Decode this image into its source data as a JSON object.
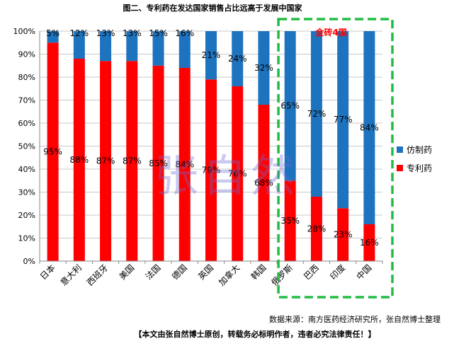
{
  "chart_data": {
    "type": "bar",
    "stacked": true,
    "title": "图二、专利药在发达国家销售占比远高于发展中国家",
    "categories": [
      "日本",
      "意大利",
      "西班牙",
      "美国",
      "法国",
      "德国",
      "英国",
      "加拿大",
      "韩国",
      "俄罗斯",
      "巴西",
      "印度",
      "中国"
    ],
    "series": [
      {
        "name": "专利药",
        "color": "#ff0000",
        "values": [
          95,
          88,
          87,
          87,
          85,
          84,
          79,
          76,
          68,
          35,
          28,
          23,
          16
        ]
      },
      {
        "name": "仿制药",
        "color": "#1e73be",
        "values": [
          5,
          12,
          13,
          13,
          15,
          16,
          21,
          24,
          32,
          65,
          72,
          77,
          84
        ]
      }
    ],
    "data_labels": {
      "专利药": [
        "95%",
        "88%",
        "87%",
        "87%",
        "85%",
        "84%",
        "79%",
        "76%",
        "68%",
        "35%",
        "28%",
        "23%",
        "16%"
      ],
      "仿制药": [
        "5%",
        "12%",
        "13%",
        "13%",
        "15%",
        "16%",
        "21%",
        "24%",
        "32%",
        "65%",
        "72%",
        "77%",
        "84%"
      ]
    },
    "ylim": [
      0,
      100
    ],
    "yticks": [
      "0%",
      "10%",
      "20%",
      "30%",
      "40%",
      "50%",
      "60%",
      "70%",
      "80%",
      "90%",
      "100%"
    ],
    "legend": [
      "仿制药",
      "专利药"
    ],
    "legend_position": "right",
    "highlight": {
      "label": "金砖4国",
      "categories": [
        "俄罗斯",
        "巴西",
        "印度",
        "中国"
      ],
      "color": "#22bb44"
    },
    "watermark": "张自然"
  },
  "footer": {
    "source": "数据来源：南方医药经济研究所，张自然博士整理",
    "notice": "【本文由张自然博士原创，转载务必标明作者，违者必究法律责任！】"
  }
}
